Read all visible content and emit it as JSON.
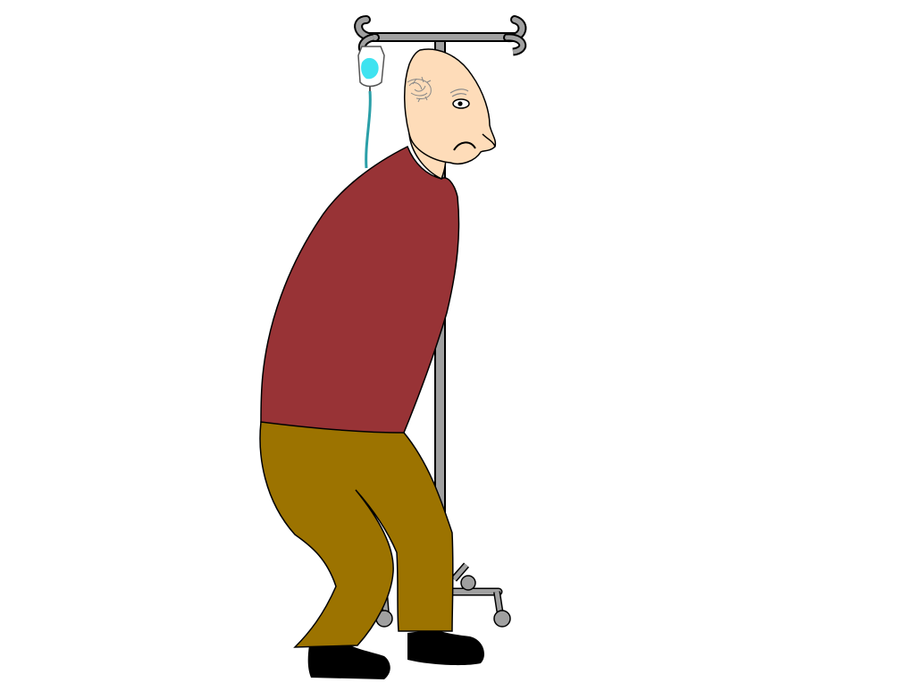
{
  "scene": {
    "colors": {
      "background": "#ffffff",
      "skin": "#fedcb9",
      "sweater": "#983336",
      "trousers": "#9c7300",
      "shoes": "#000000",
      "iv_pole": "#a0a0a0",
      "iv_fluid": "#3fe3f0",
      "outline": "#000000"
    },
    "icons": {
      "figure": "elderly-man-icon",
      "pole": "iv-drip-stand-icon",
      "bag": "iv-bag-icon"
    }
  }
}
